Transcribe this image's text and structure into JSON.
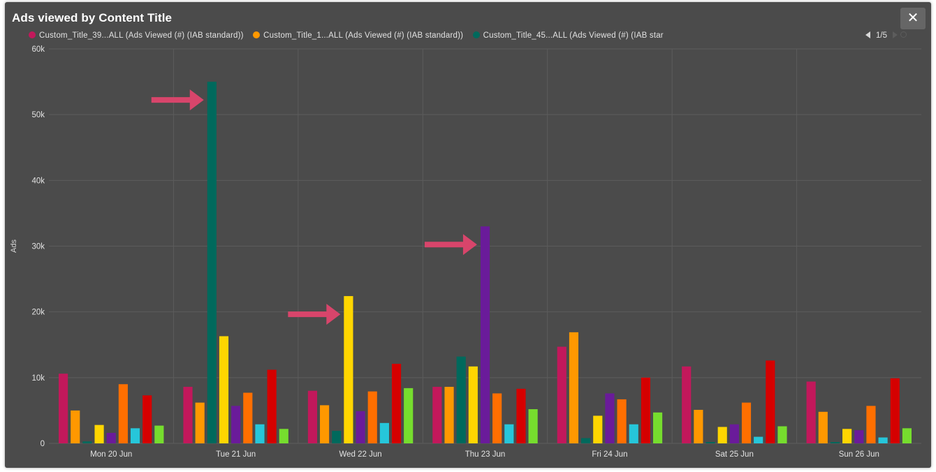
{
  "window": {
    "title": "Ads viewed by Content Title",
    "close_label": "✕"
  },
  "legend": {
    "items": [
      {
        "label": "Custom_Title_39...ALL (Ads Viewed (#) (IAB standard))",
        "color": "#c2185b"
      },
      {
        "label": "Custom_Title_1...ALL (Ads Viewed (#) (IAB standard))",
        "color": "#ff9800"
      },
      {
        "label": "Custom_Title_45...ALL (Ads Viewed (#) (IAB star",
        "color": "#00695c"
      }
    ],
    "page": "1/5"
  },
  "chart_data": {
    "type": "bar",
    "title": "Ads viewed by Content Title",
    "ylabel": "Ads",
    "xlabel": "",
    "ylim": [
      0,
      60000
    ],
    "yticks": [
      0,
      10000,
      20000,
      30000,
      40000,
      50000,
      60000
    ],
    "ytick_labels": [
      "0",
      "10k",
      "20k",
      "30k",
      "40k",
      "50k",
      "60k"
    ],
    "grid": true,
    "legend_position": "top",
    "categories": [
      "Mon 20 Jun",
      "Tue 21 Jun",
      "Wed 22 Jun",
      "Thu 23 Jun",
      "Fri 24 Jun",
      "Sat 25 Jun",
      "Sun 26 Jun"
    ],
    "series": [
      {
        "name": "Custom_Title_39...ALL (Ads Viewed (#) (IAB standard))",
        "color": "#c2185b",
        "values": [
          10600,
          8600,
          8000,
          8600,
          14700,
          11700,
          9400
        ]
      },
      {
        "name": "Custom_Title_1...ALL (Ads Viewed (#) (IAB standard))",
        "color": "#ff9800",
        "values": [
          5000,
          6200,
          5800,
          8600,
          16900,
          5100,
          4800
        ]
      },
      {
        "name": "Custom_Title_45...ALL (Ads Viewed (#) (IAB star",
        "color": "#00695c",
        "values": [
          300,
          55000,
          1900,
          13200,
          800,
          200,
          200
        ]
      },
      {
        "color": "#ffd600",
        "values": [
          2800,
          16300,
          22400,
          11700,
          4200,
          2500,
          2200
        ]
      },
      {
        "color": "#6a1b9a",
        "values": [
          1600,
          5700,
          4900,
          33000,
          7600,
          2900,
          2000
        ]
      },
      {
        "color": "#ff6f00",
        "values": [
          9000,
          7700,
          7900,
          7600,
          6700,
          6200,
          5700
        ]
      },
      {
        "color": "#26c6da",
        "values": [
          2300,
          2900,
          3100,
          2900,
          2900,
          1000,
          900
        ]
      },
      {
        "color": "#d50000",
        "values": [
          7300,
          11200,
          12100,
          8300,
          10000,
          12600,
          9900
        ]
      },
      {
        "color": "#76dd2e",
        "values": [
          2700,
          2200,
          8400,
          5200,
          4700,
          2600,
          2300
        ]
      }
    ],
    "annotations": [
      {
        "type": "arrow",
        "points_to": {
          "category": "Tue 21 Jun",
          "series_index": 2
        }
      },
      {
        "type": "arrow",
        "points_to": {
          "category": "Wed 22 Jun",
          "series_index": 3
        }
      },
      {
        "type": "arrow",
        "points_to": {
          "category": "Thu 23 Jun",
          "series_index": 4
        }
      }
    ],
    "colors": {
      "background": "#4b4b4b",
      "grid": "#5c5c5c",
      "arrow": "#d8456b"
    }
  }
}
